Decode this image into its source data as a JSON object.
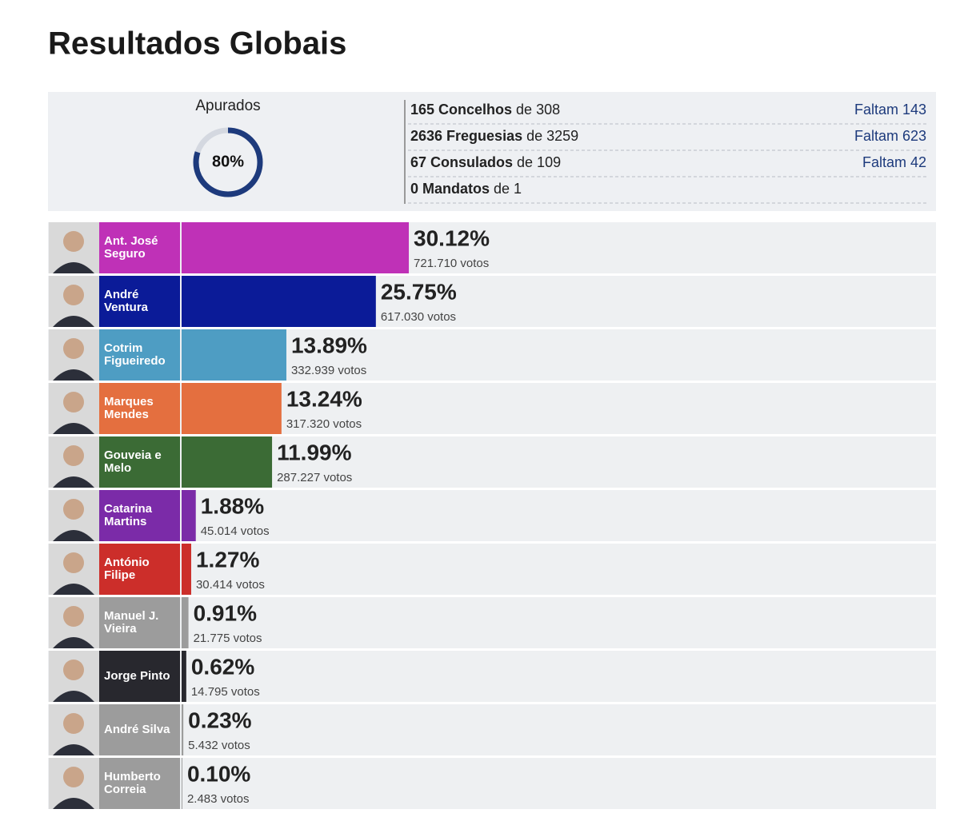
{
  "header": {
    "title": "Resultados Globais"
  },
  "summary": {
    "label": "Apurados",
    "progress": 80,
    "progress_label": "80%",
    "rows": [
      {
        "count": "165 Concelhos",
        "total": "de 308",
        "missing": "Faltam 143"
      },
      {
        "count": "2636 Freguesias",
        "total": "de 3259",
        "missing": "Faltam 623"
      },
      {
        "count": "67 Consulados",
        "total": "de 109",
        "missing": "Faltam 42"
      },
      {
        "count": "0 Mandatos",
        "total": "de 1"
      }
    ]
  },
  "chart_data": {
    "type": "bar",
    "orientation": "horizontal",
    "categories": [
      "Ant. José Seguro",
      "André Ventura",
      "Cotrim Figueiredo",
      "Marques Mendes",
      "Gouveia e Melo",
      "Catarina Martins",
      "António Filipe",
      "Manuel J. Vieira",
      "Jorge Pinto",
      "André Silva",
      "Humberto Correia"
    ],
    "values": [
      30.12,
      25.75,
      13.89,
      13.24,
      11.99,
      1.88,
      1.27,
      0.91,
      0.62,
      0.23,
      0.1
    ],
    "value_labels": [
      "30.12%",
      "25.75%",
      "13.89%",
      "13.24%",
      "11.99%",
      "1.88%",
      "1.27%",
      "0.91%",
      "0.62%",
      "0.23%",
      "0.10%"
    ],
    "votes": [
      721710,
      617030,
      332939,
      317320,
      287227,
      45014,
      30414,
      21775,
      14795,
      5432,
      2483
    ],
    "vote_labels": [
      "721.710 votos",
      "617.030 votos",
      "332.939 votos",
      "317.320 votos",
      "287.227 votos",
      "45.014 votos",
      "30.414 votos",
      "21.775 votos",
      "14.795 votos",
      "5.432 votos",
      "2.483 votos"
    ],
    "colors": [
      "#bf31b7",
      "#0b1b98",
      "#4e9dc3",
      "#e46f3f",
      "#3b6b35",
      "#7b2ba8",
      "#cc2e2a",
      "#9c9c9c",
      "#28282e",
      "#9c9c9c",
      "#9c9c9c"
    ],
    "xlim": [
      0,
      100
    ]
  }
}
